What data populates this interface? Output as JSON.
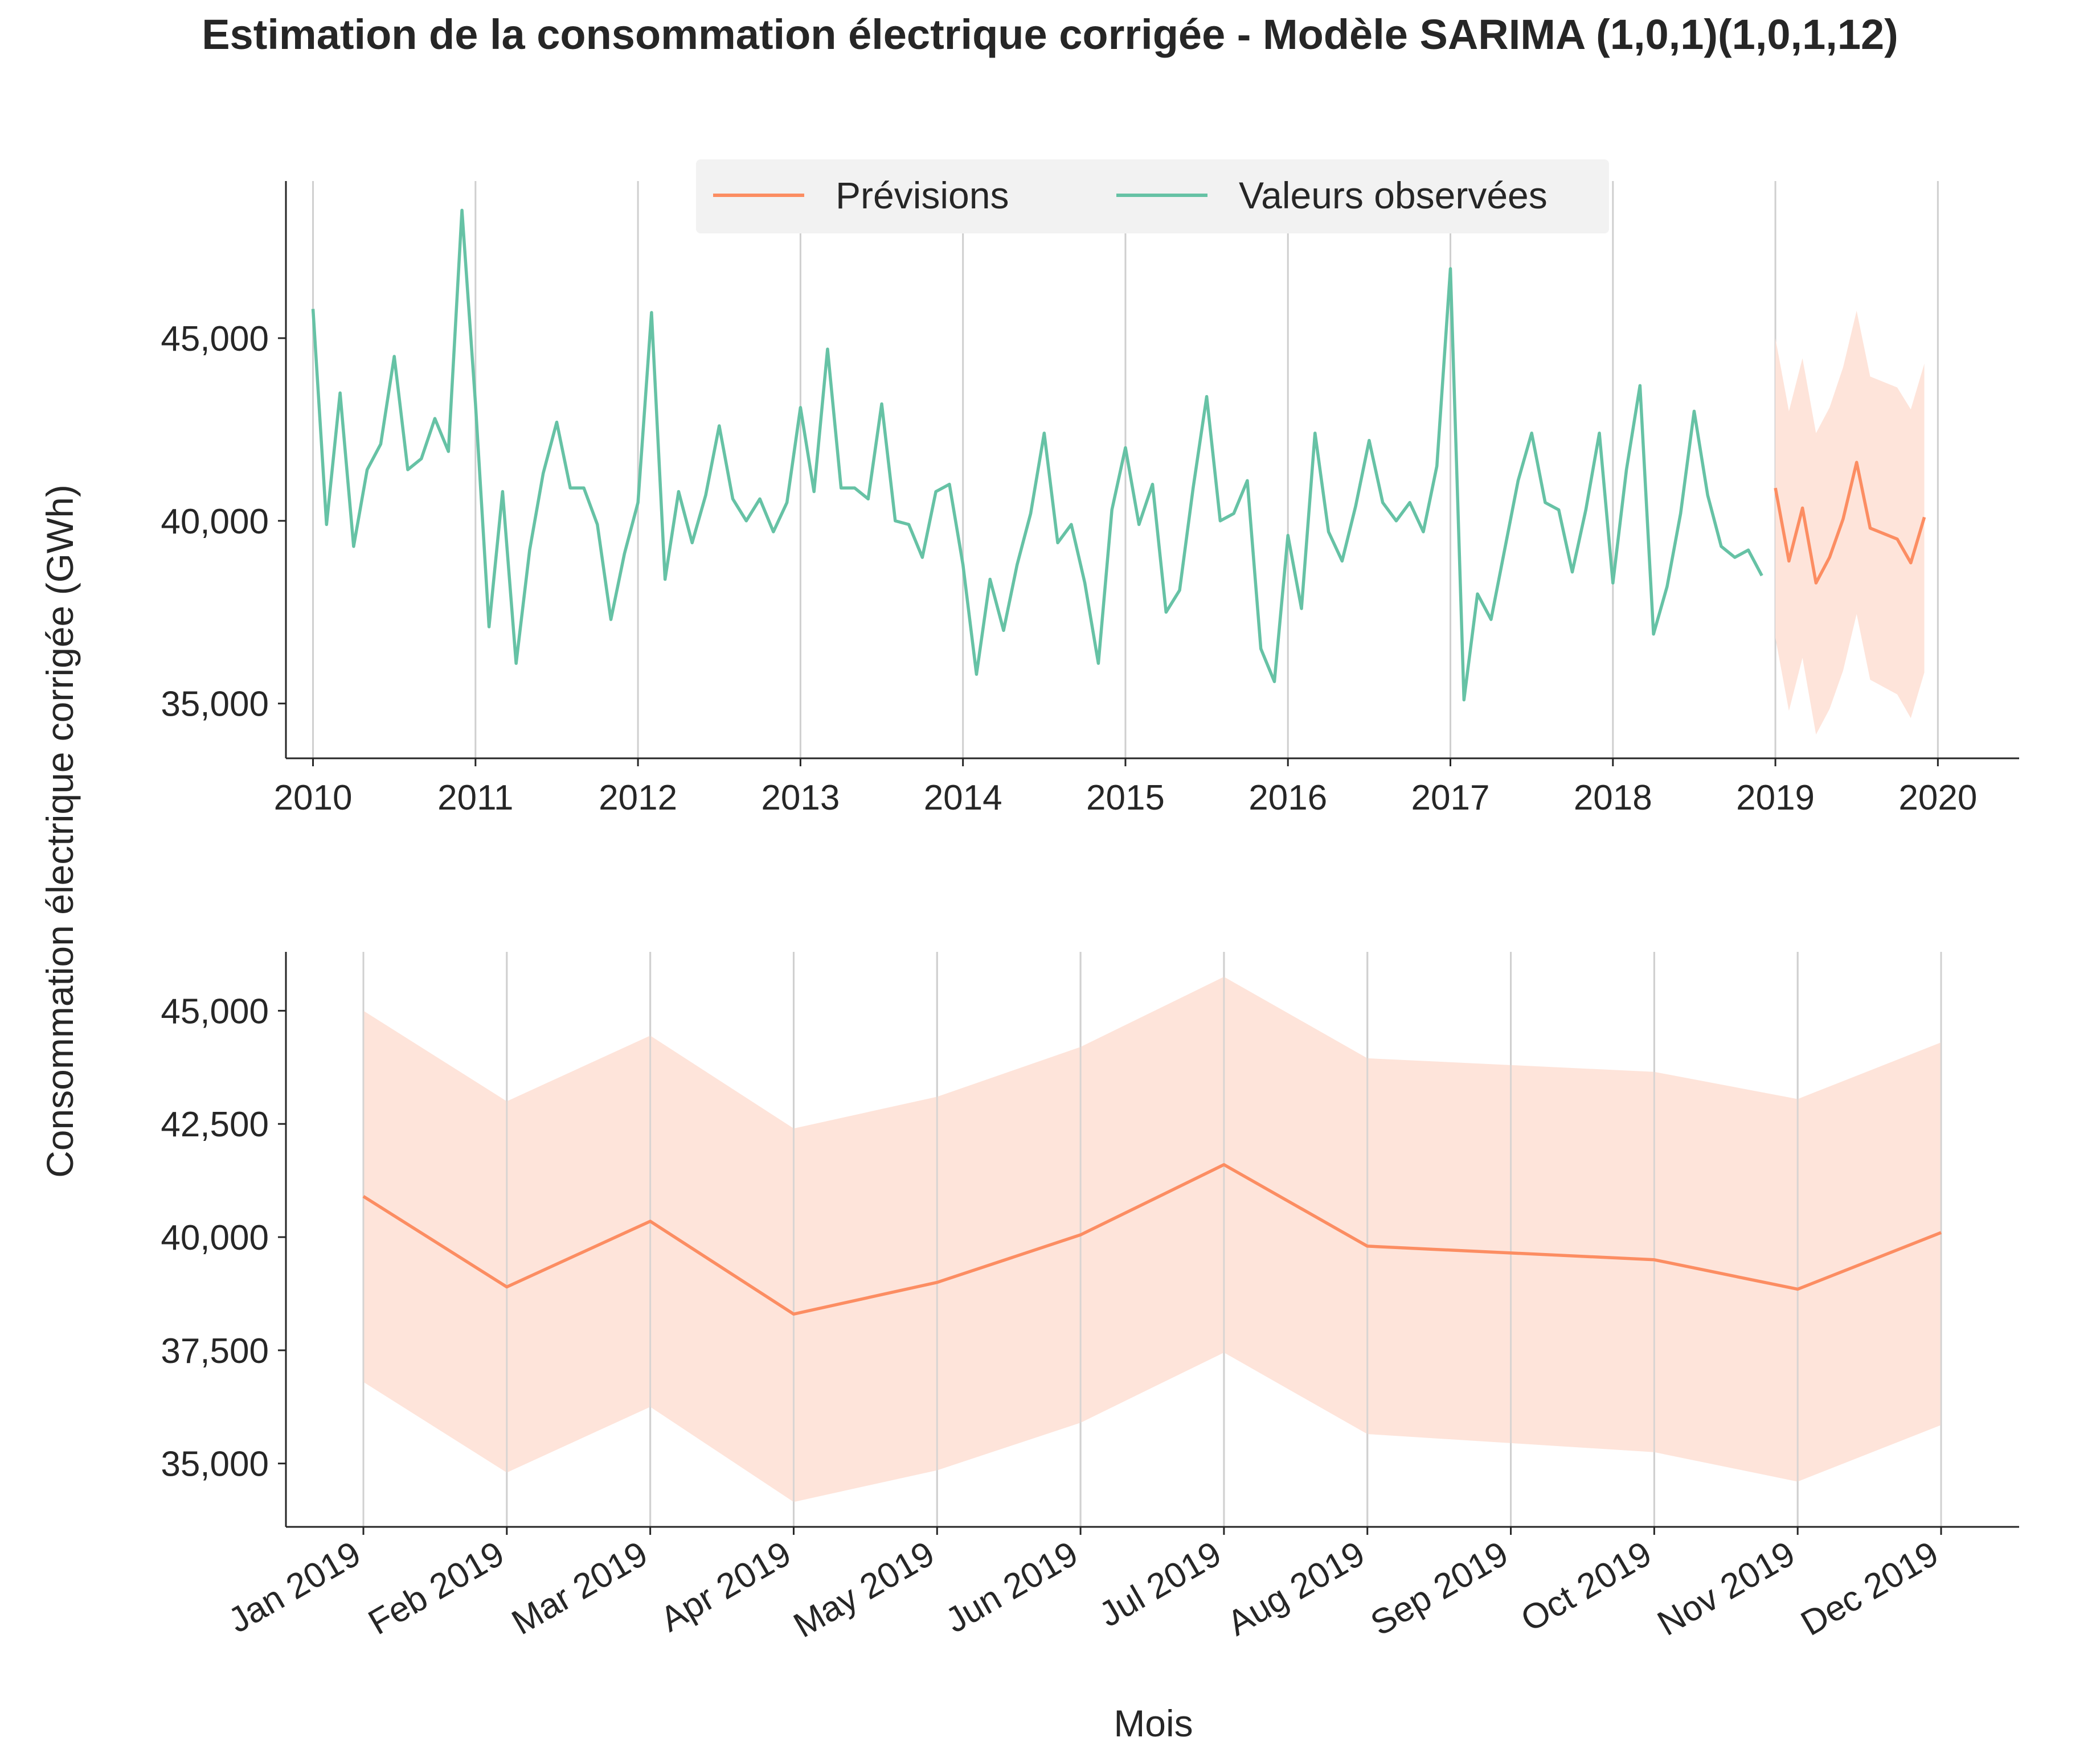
{
  "figure": {
    "title": "Estimation de la consommation électrique corrigée - Modèle SARIMA (1,0,1)(1,0,1,12)",
    "ylabel": "Consommation électrique corrigée (GWh)",
    "xlabel": "Mois"
  },
  "colors": {
    "observed": "#66c2a5",
    "forecast": "#fc8d62",
    "band": "#fee4da",
    "grid": "#cfcfcf",
    "axis": "#262626",
    "legend_bg": "#f2f2f2"
  },
  "chart_data": [
    {
      "type": "line",
      "legend": {
        "placement": "top-center",
        "entries": [
          "Prévisions",
          "Valeurs observées"
        ]
      },
      "x_tick_labels": [
        "2010",
        "2011",
        "2012",
        "2013",
        "2014",
        "2015",
        "2016",
        "2017",
        "2018",
        "2019",
        "2020"
      ],
      "y_ticks": [
        35000,
        40000,
        45000
      ],
      "y_tick_labels": [
        "35,000",
        "40,000",
        "45,000"
      ],
      "xlim": [
        "2009-11",
        "2020-07"
      ],
      "ylim": [
        33500,
        49300
      ],
      "grid": "vertical",
      "series": [
        {
          "name": "Valeures observées",
          "start": "2010-01",
          "values": [
            45800,
            39900,
            43500,
            39300,
            41400,
            42100,
            44500,
            41400,
            41700,
            42800,
            41900,
            48500,
            43200,
            37100,
            40800,
            36100,
            39200,
            41300,
            42700,
            40900,
            40900,
            39900,
            37300,
            39100,
            40500,
            45700,
            38400,
            40800,
            39400,
            40700,
            42600,
            40600,
            40000,
            40600,
            39700,
            40500,
            43100,
            40800,
            44700,
            40900,
            40900,
            40600,
            43200,
            40000,
            39900,
            39000,
            40800,
            41000,
            38800,
            35800,
            38400,
            37000,
            38800,
            40200,
            42400,
            39400,
            39900,
            38300,
            36100,
            40300,
            42000,
            39900,
            41000,
            37500,
            38100,
            40900,
            43400,
            40000,
            40200,
            41100,
            36500,
            35600,
            39600,
            37600,
            42400,
            39700,
            38900,
            40400,
            42200,
            40500,
            40000,
            40500,
            39700,
            41500,
            46900,
            35100,
            38000,
            37300,
            39200,
            41100,
            42400,
            40500,
            40300,
            38600,
            40300,
            42400,
            38300,
            41400,
            43700,
            36900,
            38200,
            40200,
            43000,
            40700,
            39300,
            39000,
            39200,
            38500
          ]
        },
        {
          "name": "Prévisions",
          "start": "2019-01",
          "values": [
            40900,
            38900,
            40350,
            38300,
            39000,
            40050,
            41600,
            39800,
            39650,
            39500,
            38850,
            40100
          ],
          "lower": [
            36800,
            34800,
            36250,
            34150,
            34850,
            35900,
            37450,
            35650,
            35450,
            35250,
            34600,
            35850
          ],
          "upper": [
            45000,
            43000,
            44450,
            42400,
            43100,
            44200,
            45750,
            43950,
            43800,
            43650,
            43050,
            44300
          ]
        }
      ]
    },
    {
      "type": "line",
      "x_tick_labels": [
        "Jan 2019",
        "Feb 2019",
        "Mar 2019",
        "Apr 2019",
        "May 2019",
        "Jun 2019",
        "Jul 2019",
        "Aug 2019",
        "Sep 2019",
        "Oct 2019",
        "Nov 2019",
        "Dec 2019"
      ],
      "y_ticks": [
        35000,
        37500,
        40000,
        42500,
        45000
      ],
      "y_tick_labels": [
        "35,000",
        "37,500",
        "40,000",
        "42,500",
        "45,000"
      ],
      "ylim": [
        33600,
        46300
      ],
      "grid": "vertical",
      "series": [
        {
          "name": "Prévisions",
          "values": [
            40900,
            38900,
            40350,
            38300,
            39000,
            40050,
            41600,
            39800,
            39650,
            39500,
            38850,
            40100
          ],
          "lower": [
            36800,
            34800,
            36250,
            34150,
            34850,
            35900,
            37450,
            35650,
            35450,
            35250,
            34600,
            35850
          ],
          "upper": [
            45000,
            43000,
            44450,
            42400,
            43100,
            44200,
            45750,
            43950,
            43800,
            43650,
            43050,
            44300
          ]
        }
      ]
    }
  ]
}
